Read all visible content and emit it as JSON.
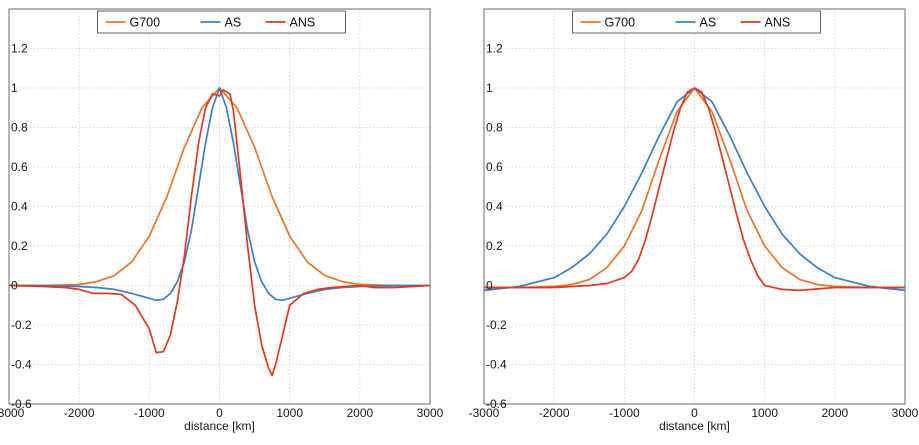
{
  "chart_data": [
    {
      "type": "line",
      "xlabel": "distance [km]",
      "ylabel": "",
      "xlim": [
        -3000,
        3000
      ],
      "ylim": [
        -0.6,
        1.4
      ],
      "xticks": [
        -3000,
        -2000,
        -1000,
        0,
        1000,
        2000,
        3000
      ],
      "yticks": [
        -0.6,
        -0.4,
        -0.2,
        0,
        0.2,
        0.4,
        0.6,
        0.8,
        1,
        1.2
      ],
      "ytick_labels": [
        "-0.6",
        "-0.4",
        "-0.2",
        "0",
        "0.2",
        "0.4",
        "0.6",
        "0.8",
        "1",
        "1.2"
      ],
      "grid": true,
      "legend_position": "top-center",
      "series": [
        {
          "name": "G700",
          "color": "#e8772e",
          "x": [
            -3000,
            -2500,
            -2000,
            -1750,
            -1500,
            -1250,
            -1000,
            -750,
            -500,
            -250,
            0,
            250,
            500,
            750,
            1000,
            1250,
            1500,
            1750,
            2000,
            2500,
            3000
          ],
          "y": [
            0,
            0,
            0.005,
            0.02,
            0.05,
            0.12,
            0.25,
            0.45,
            0.7,
            0.9,
            1.0,
            0.9,
            0.7,
            0.45,
            0.25,
            0.12,
            0.05,
            0.02,
            0.005,
            0,
            0
          ]
        },
        {
          "name": "AS",
          "color": "#3d7fc4",
          "x": [
            -3000,
            -2500,
            -2000,
            -1750,
            -1500,
            -1250,
            -1000,
            -900,
            -800,
            -700,
            -600,
            -500,
            -400,
            -300,
            -200,
            -100,
            0,
            100,
            200,
            300,
            400,
            500,
            600,
            700,
            800,
            900,
            1000,
            1250,
            1500,
            1750,
            2000,
            2500,
            3000
          ],
          "y": [
            0,
            0,
            -0.005,
            -0.01,
            -0.02,
            -0.04,
            -0.065,
            -0.075,
            -0.07,
            -0.04,
            0.02,
            0.12,
            0.28,
            0.5,
            0.72,
            0.9,
            1.0,
            0.9,
            0.72,
            0.5,
            0.28,
            0.12,
            0.02,
            -0.04,
            -0.07,
            -0.075,
            -0.065,
            -0.04,
            -0.02,
            -0.01,
            -0.005,
            0,
            0
          ]
        },
        {
          "name": "ANS",
          "color": "#e03a22",
          "x": [
            -3000,
            -2500,
            -2200,
            -2000,
            -1800,
            -1600,
            -1400,
            -1200,
            -1000,
            -900,
            -800,
            -700,
            -600,
            -500,
            -400,
            -300,
            -200,
            -100,
            0,
            50,
            100,
            150,
            200,
            300,
            400,
            500,
            600,
            700,
            750,
            800,
            900,
            1000,
            1200,
            1400,
            1600,
            1800,
            2000,
            2200,
            2500,
            3000
          ],
          "y": [
            0,
            -0.005,
            -0.01,
            -0.02,
            -0.04,
            -0.04,
            -0.045,
            -0.1,
            -0.22,
            -0.34,
            -0.335,
            -0.25,
            -0.08,
            0.15,
            0.45,
            0.72,
            0.9,
            0.97,
            0.96,
            0.99,
            0.98,
            0.97,
            0.88,
            0.55,
            0.2,
            -0.1,
            -0.3,
            -0.42,
            -0.455,
            -0.4,
            -0.25,
            -0.1,
            -0.04,
            -0.02,
            -0.01,
            -0.005,
            0,
            -0.01,
            -0.01,
            0
          ]
        }
      ]
    },
    {
      "type": "line",
      "xlabel": "distance  [km]",
      "ylabel": "",
      "xlim": [
        -3000,
        3000
      ],
      "ylim": [
        -0.6,
        1.4
      ],
      "xticks": [
        -3000,
        -2000,
        -1000,
        0,
        1000,
        2000,
        3000
      ],
      "yticks": [
        -0.6,
        -0.4,
        -0.2,
        0,
        0.2,
        0.4,
        0.6,
        0.8,
        1,
        1.2
      ],
      "ytick_labels": [
        "-0.6",
        "-0.4",
        "-0.2",
        "0",
        "0.2",
        "0.4",
        "0.6",
        "0.8",
        "1",
        "1.2"
      ],
      "grid": true,
      "legend_position": "top-center",
      "series": [
        {
          "name": "G700",
          "color": "#e8772e",
          "x": [
            -3000,
            -2500,
            -2000,
            -1750,
            -1500,
            -1250,
            -1000,
            -750,
            -500,
            -250,
            0,
            250,
            500,
            750,
            1000,
            1250,
            1500,
            1750,
            2000,
            2500,
            3000
          ],
          "y": [
            -0.01,
            -0.01,
            -0.005,
            0.005,
            0.03,
            0.09,
            0.2,
            0.38,
            0.64,
            0.88,
            1.0,
            0.88,
            0.64,
            0.38,
            0.2,
            0.09,
            0.03,
            0.005,
            -0.005,
            -0.01,
            -0.01
          ]
        },
        {
          "name": "AS",
          "color": "#3d7fc4",
          "x": [
            -3000,
            -2500,
            -2000,
            -1750,
            -1500,
            -1250,
            -1000,
            -750,
            -500,
            -250,
            0,
            250,
            500,
            750,
            1000,
            1250,
            1500,
            1750,
            2000,
            2500,
            3000
          ],
          "y": [
            -0.025,
            -0.005,
            0.04,
            0.09,
            0.16,
            0.26,
            0.4,
            0.57,
            0.76,
            0.93,
            1.0,
            0.93,
            0.76,
            0.57,
            0.4,
            0.26,
            0.16,
            0.09,
            0.04,
            -0.005,
            -0.025
          ]
        },
        {
          "name": "ANS",
          "color": "#e03a22",
          "x": [
            -3000,
            -2500,
            -2000,
            -1500,
            -1250,
            -1000,
            -900,
            -800,
            -700,
            -600,
            -500,
            -400,
            -300,
            -200,
            -100,
            0,
            100,
            200,
            300,
            400,
            500,
            600,
            700,
            800,
            900,
            1000,
            1250,
            1500,
            2000,
            2500,
            3000
          ],
          "y": [
            -0.01,
            -0.01,
            -0.01,
            0,
            0.01,
            0.04,
            0.07,
            0.13,
            0.23,
            0.36,
            0.5,
            0.64,
            0.78,
            0.9,
            0.98,
            1.0,
            0.98,
            0.9,
            0.78,
            0.64,
            0.5,
            0.36,
            0.23,
            0.13,
            0.05,
            0.0,
            -0.02,
            -0.025,
            -0.01,
            -0.01,
            -0.01
          ]
        }
      ]
    }
  ]
}
